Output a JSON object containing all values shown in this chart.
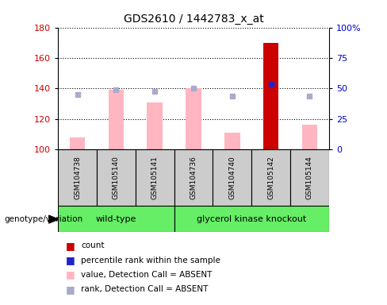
{
  "title": "GDS2610 / 1442783_x_at",
  "samples": [
    "GSM104738",
    "GSM105140",
    "GSM105141",
    "GSM104736",
    "GSM104740",
    "GSM105142",
    "GSM105144"
  ],
  "bar_values": [
    108,
    139,
    131,
    140,
    111,
    170,
    116
  ],
  "bar_colors": [
    "#FFB6C1",
    "#FFB6C1",
    "#FFB6C1",
    "#FFB6C1",
    "#FFB6C1",
    "#CC0000",
    "#FFB6C1"
  ],
  "rank_dots": [
    136,
    139,
    138,
    140,
    135,
    143,
    135
  ],
  "rank_dot_colors": [
    "#AAAACC",
    "#AAAACC",
    "#AAAACC",
    "#AAAACC",
    "#AAAACC",
    "#2222CC",
    "#AAAACC"
  ],
  "ylim_left": [
    100,
    180
  ],
  "ylim_right": [
    0,
    100
  ],
  "yticks_left": [
    100,
    120,
    140,
    160,
    180
  ],
  "yticks_right": [
    0,
    25,
    50,
    75,
    100
  ],
  "ytick_labels_right": [
    "0",
    "25",
    "50",
    "75",
    "100%"
  ],
  "ylabel_left_color": "#CC0000",
  "ylabel_right_color": "#0000CC",
  "bg_color": "#FFFFFF",
  "genotype_label": "genotype/variation",
  "bar_width": 0.4,
  "wt_samples": 3,
  "gk_samples": 4,
  "wt_label": "wild-type",
  "gk_label": "glycerol kinase knockout",
  "group_color": "#66EE66",
  "sample_box_color": "#CCCCCC",
  "legend_items": [
    {
      "color": "#CC0000",
      "label": "count"
    },
    {
      "color": "#2222CC",
      "label": "percentile rank within the sample"
    },
    {
      "color": "#FFB6C1",
      "label": "value, Detection Call = ABSENT"
    },
    {
      "color": "#AAAACC",
      "label": "rank, Detection Call = ABSENT"
    }
  ]
}
